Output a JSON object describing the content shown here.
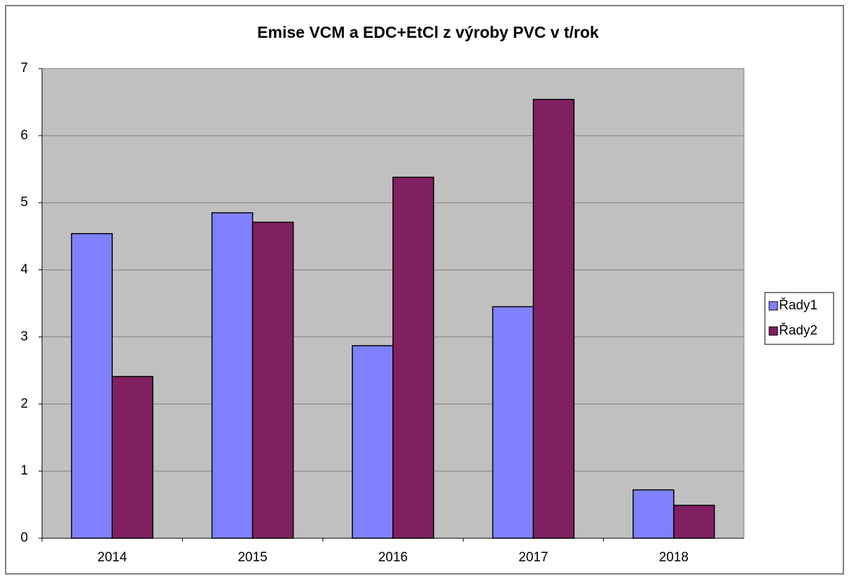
{
  "chart_data": {
    "type": "bar",
    "title": "Emise VCM a EDC+EtCl z výroby PVC v t/rok",
    "categories": [
      "2014",
      "2015",
      "2016",
      "2017",
      "2018"
    ],
    "series": [
      {
        "name": "Řady1",
        "color": "#8080ff",
        "values": [
          4.54,
          4.85,
          2.87,
          3.45,
          0.72
        ]
      },
      {
        "name": "Řady2",
        "color": "#802060",
        "values": [
          2.41,
          4.71,
          5.38,
          6.54,
          0.49
        ]
      }
    ],
    "ylim": [
      0,
      7
    ],
    "yticks": [
      0,
      1,
      2,
      3,
      4,
      5,
      6,
      7
    ],
    "grid": true,
    "legend": "right"
  }
}
